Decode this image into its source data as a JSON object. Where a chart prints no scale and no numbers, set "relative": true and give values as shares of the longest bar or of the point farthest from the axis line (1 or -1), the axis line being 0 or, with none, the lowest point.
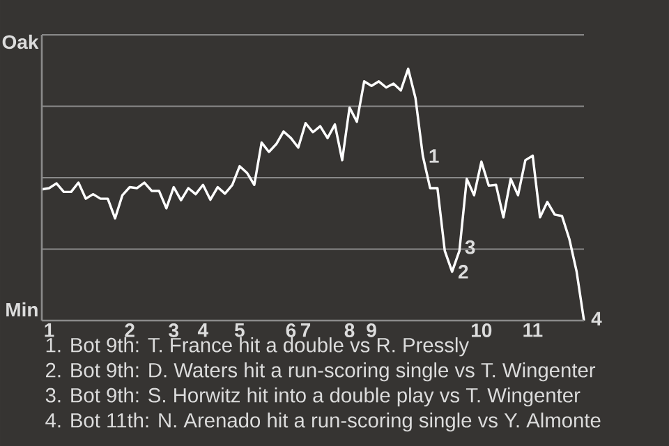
{
  "chart_data": {
    "type": "line",
    "relative": true,
    "categories": [
      null,
      "1",
      null,
      null,
      null,
      null,
      null,
      null,
      null,
      null,
      null,
      null,
      "2",
      null,
      null,
      null,
      null,
      null,
      "3",
      null,
      null,
      null,
      "4",
      null,
      null,
      null,
      null,
      "5",
      null,
      null,
      null,
      null,
      null,
      null,
      "6",
      null,
      "7",
      null,
      null,
      null,
      null,
      null,
      "8",
      null,
      null,
      "9",
      null,
      null,
      null,
      null,
      null,
      null,
      null,
      null,
      null,
      null,
      null,
      null,
      null,
      null,
      "10",
      null,
      null,
      null,
      null,
      null,
      null,
      "11",
      null,
      null,
      null,
      null,
      null,
      null,
      null
    ],
    "values": [
      0.521,
      0.526,
      0.545,
      0.511,
      0.511,
      0.548,
      0.484,
      0.502,
      0.484,
      0.484,
      0.406,
      0.498,
      0.53,
      0.526,
      0.548,
      0.515,
      0.515,
      0.446,
      0.53,
      0.478,
      0.526,
      0.502,
      0.539,
      0.48,
      0.53,
      0.504,
      0.539,
      0.613,
      0.587,
      0.539,
      0.707,
      0.67,
      0.701,
      0.751,
      0.725,
      0.687,
      0.784,
      0.748,
      0.772,
      0.725,
      0.779,
      0.637,
      0.846,
      0.79,
      0.95,
      0.932,
      0.95,
      0.926,
      0.941,
      0.914,
      1,
      0.884,
      0.655,
      0.526,
      0.526,
      0.277,
      0.194,
      0.277,
      0.563,
      0.498,
      0.631,
      0.536,
      0.539,
      0.41,
      0.563,
      0.498,
      0.637,
      0.655,
      0.41,
      0.471,
      0.421,
      0.415,
      0.324,
      0.194,
      0
    ],
    "color": "#ffffff",
    "grid": "y",
    "annotations": [
      "Oak",
      "Min",
      "1",
      "2",
      "3",
      "4",
      "1. Bot 9th: T. France hit a double vs R. Pressly",
      "2. Bot 9th: D. Waters hit a run-scoring single vs T. Wingenter",
      "3. Bot 9th: S. Horwitz hit into a double play vs T. Wingenter",
      "4. Bot 11th: N. Arenado hit a run-scoring single vs Y. Almonte"
    ]
  }
}
